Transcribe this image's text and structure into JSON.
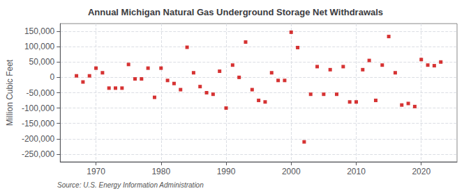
{
  "chart_data": {
    "type": "scatter",
    "title": "Annual Michigan Natural Gas Underground Storage Net Withdrawals",
    "ylabel": "Million Cubic Feet",
    "annotation": "Source: U.S. Energy Information Administration",
    "x": [
      1967,
      1968,
      1969,
      1970,
      1971,
      1972,
      1973,
      1974,
      1975,
      1976,
      1977,
      1978,
      1979,
      1980,
      1981,
      1982,
      1983,
      1984,
      1985,
      1986,
      1987,
      1988,
      1989,
      1990,
      1991,
      1992,
      1993,
      1994,
      1995,
      1996,
      1997,
      1998,
      1999,
      2000,
      2001,
      2002,
      2003,
      2004,
      2005,
      2006,
      2007,
      2008,
      2009,
      2010,
      2011,
      2012,
      2013,
      2014,
      2015,
      2016,
      2017,
      2018,
      2019,
      2020,
      2021,
      2022,
      2023
    ],
    "values": [
      5000,
      -15000,
      5000,
      30000,
      15000,
      -35000,
      -35000,
      -35000,
      42000,
      -5000,
      -5000,
      30000,
      -65000,
      30000,
      -10000,
      -20000,
      -40000,
      98000,
      15000,
      -30000,
      -50000,
      -55000,
      20000,
      -100000,
      40000,
      0,
      115000,
      -40000,
      -75000,
      -80000,
      15000,
      -10000,
      -10000,
      147000,
      97000,
      -210000,
      -55000,
      35000,
      -55000,
      25000,
      -55000,
      35000,
      -80000,
      -80000,
      25000,
      55000,
      -75000,
      40000,
      133000,
      15000,
      -90000,
      -85000,
      -95000,
      58000,
      40000,
      38000,
      50000
    ],
    "color": "#cc0000",
    "marker": "square",
    "xlim": [
      1964.5,
      2025.5
    ],
    "xticks": [
      1970,
      1980,
      1990,
      2000,
      2010,
      2020
    ],
    "ylim": [
      -275000,
      175000
    ],
    "yticks": [
      {
        "value": -250000,
        "label": "-250,000"
      },
      {
        "value": -200000,
        "label": "-200,000"
      },
      {
        "value": -150000,
        "label": "-150,000"
      },
      {
        "value": -100000,
        "label": "-100,000"
      },
      {
        "value": -50000,
        "label": "-50,000"
      },
      0,
      {
        "value": 50000,
        "label": "50,000"
      },
      {
        "value": 100000,
        "label": "100,000"
      },
      {
        "value": 150000,
        "label": "150,000"
      }
    ],
    "grid": true
  }
}
